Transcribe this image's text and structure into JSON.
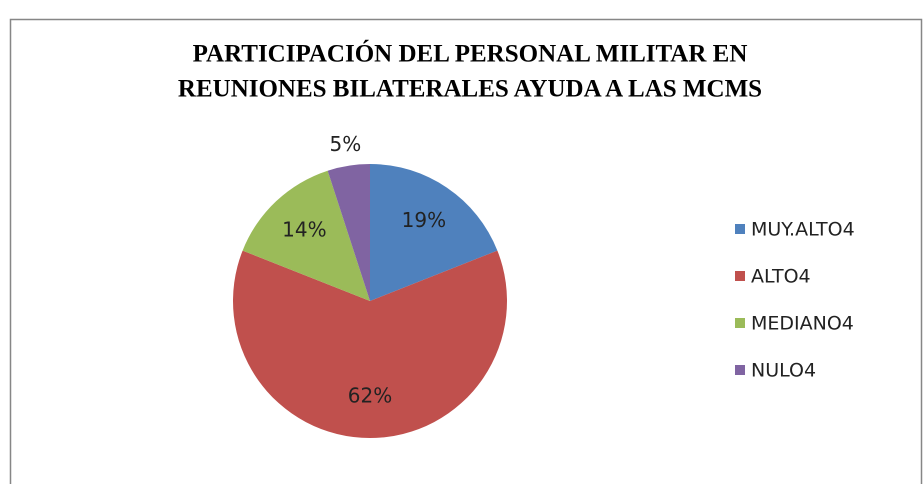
{
  "chart_data": {
    "type": "pie",
    "title": [
      "PARTICIPACIÓN DEL PERSONAL MILITAR EN",
      "REUNIONES BILATERALES AYUDA A LAS MCMS"
    ],
    "categories": [
      "MUY.ALTO4",
      "ALTO4",
      "MEDIANO4",
      "NULO4"
    ],
    "values": [
      19,
      62,
      14,
      5
    ],
    "value_labels": [
      "19%",
      "62%",
      "14%",
      "5%"
    ],
    "colors": [
      "#4f81bd",
      "#c0504d",
      "#9bbb59",
      "#8064a2"
    ],
    "legend": "right"
  }
}
